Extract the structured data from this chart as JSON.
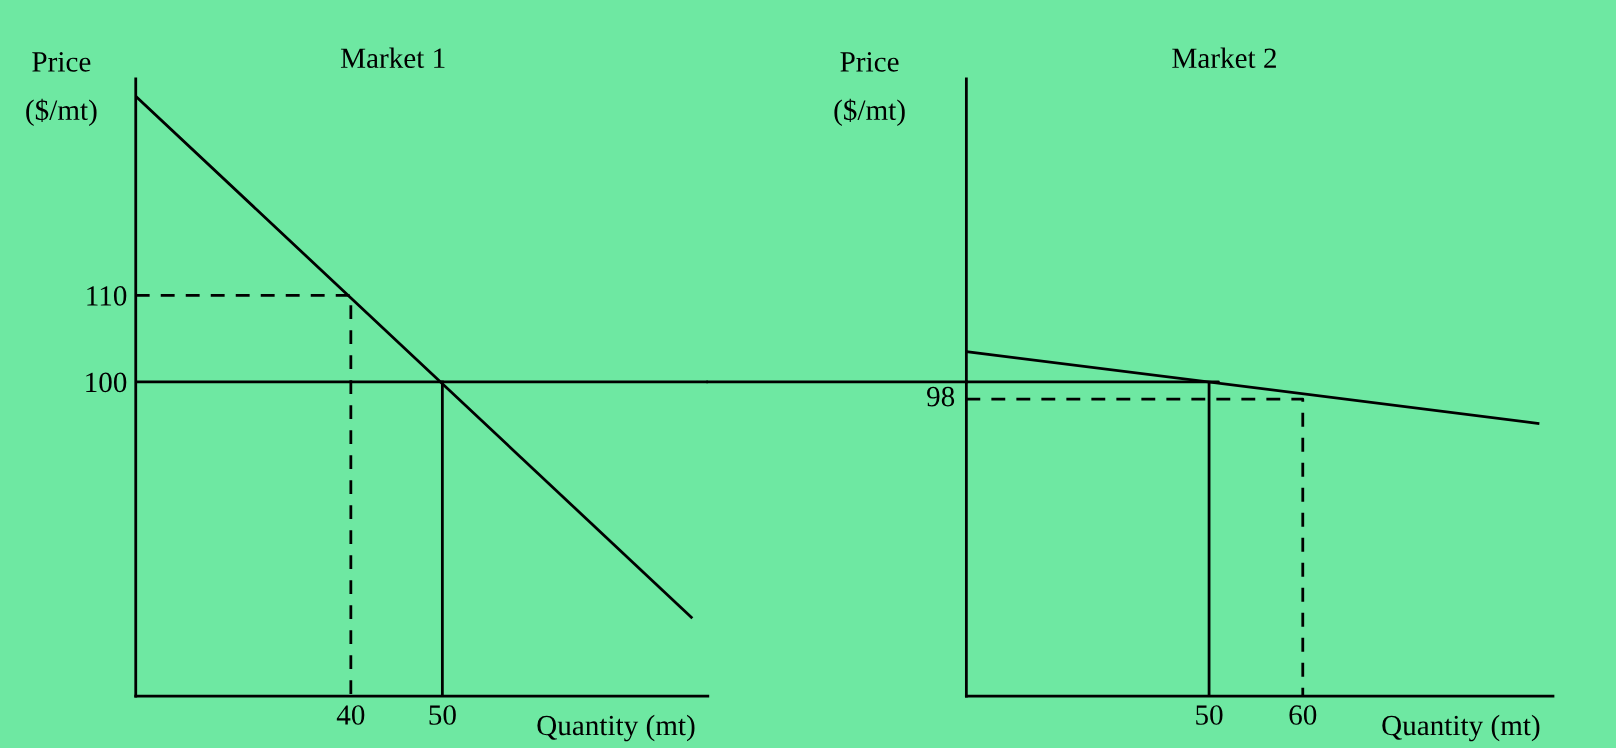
{
  "chart_data": [
    {
      "type": "line",
      "title": "Market 1",
      "xlabel": "Quantity (mt)",
      "ylabel": "Price\n($/mt)",
      "xlim": [
        16.5,
        79
      ],
      "ylim": [
        63.7,
        135
      ],
      "xticks": [
        40,
        50
      ],
      "yticks": [
        110,
        100
      ],
      "grid": false,
      "legend": false,
      "marker": "none",
      "series": [
        {
          "color": "#000000",
          "line_style": "solid",
          "x": [
            16.5,
            77.2
          ],
          "values": [
            133,
            72.8
          ]
        },
        {
          "color": "#000000",
          "line_style": "dashed",
          "x": [
            16.5,
            40,
            40
          ],
          "values": [
            110,
            110,
            63.7
          ]
        },
        {
          "color": "#000000",
          "line_style": "solid",
          "x": [
            50,
            50
          ],
          "values": [
            100,
            63.7
          ]
        }
      ],
      "ref_lines": [
        {
          "axis": "y",
          "value": 100,
          "color": "#000000",
          "line_style": "solid"
        }
      ]
    },
    {
      "type": "line",
      "title": "Market 2",
      "xlabel": "Quantity (mt)",
      "ylabel": "Price\n($/mt)",
      "xlim": [
        24.1,
        86.7
      ],
      "ylim": [
        63.7,
        135
      ],
      "xticks": [
        50,
        60
      ],
      "tick_labels": "x",
      "grid": false,
      "legend": false,
      "marker": "none",
      "annotations": [
        {
          "text": "98",
          "x": 24.1,
          "y": 98
        }
      ],
      "series": [
        {
          "color": "#000000",
          "line_style": "solid",
          "x": [
            24.1,
            85.1
          ],
          "values": [
            103.5,
            95.2
          ]
        },
        {
          "color": "#000000",
          "line_style": "dashed",
          "x": [
            24.1,
            60,
            60
          ],
          "values": [
            98,
            98,
            63.7
          ]
        },
        {
          "color": "#000000",
          "line_style": "solid",
          "x": [
            24.1,
            51,
            50,
            50
          ],
          "values": [
            100,
            100,
            100,
            63.7
          ]
        }
      ]
    }
  ]
}
